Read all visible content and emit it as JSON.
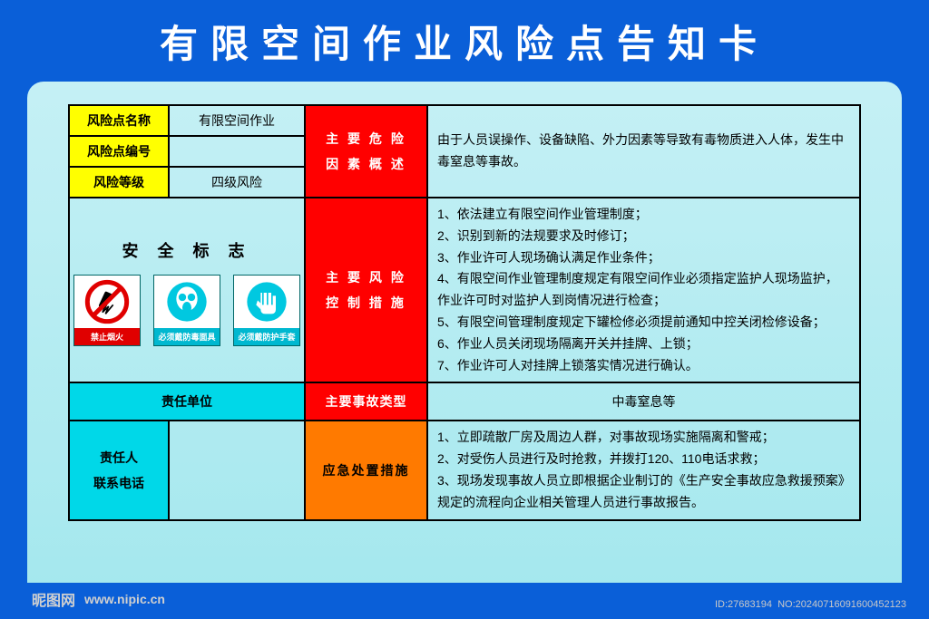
{
  "title": "有限空间作业风险点告知卡",
  "colors": {
    "frame": "#0a5fd8",
    "panel_top": "#c5f0f5",
    "panel_bottom": "#a5e8ee",
    "yellow": "#ffff00",
    "cyan": "#00d8e8",
    "red": "#ff0000",
    "orange": "#ff7a00",
    "border": "#000000"
  },
  "columns": {
    "c1": 110,
    "c2": 150,
    "c3": 135,
    "c4": "auto"
  },
  "rows": {
    "name": {
      "label": "风险点名称",
      "value": "有限空间作业"
    },
    "code": {
      "label": "风险点编号",
      "value": ""
    },
    "level": {
      "label": "风险等级",
      "value": "四级风险"
    },
    "hazard_summary": {
      "label": "主 要 危 险\n因 素 概 述",
      "text": "由于人员误操作、设备缺陷、外力因素等导致有毒物质进入人体，发生中毒窒息等事故。"
    },
    "safety_signs": {
      "title": "安 全 标 志",
      "signs": [
        {
          "type": "prohibit",
          "label": "禁止烟火",
          "icon_name": "no-fire-icon"
        },
        {
          "type": "mandate",
          "label": "必须戴防毒面具",
          "icon_name": "gas-mask-icon"
        },
        {
          "type": "mandate",
          "label": "必须戴防护手套",
          "icon_name": "gloves-icon"
        }
      ]
    },
    "control_measures": {
      "label": "主 要 风 险\n控 制 措 施",
      "items": [
        "1、依法建立有限空间作业管理制度；",
        "2、识别到新的法规要求及时修订；",
        "3、作业许可人现场确认满足作业条件；",
        "4、有限空间作业管理制度规定有限空间作业必须指定监护人现场监护，作业许可时对监护人到岗情况进行检查；",
        "5、有限空间管理制度规定下罐检修必须提前通知中控关闭检修设备；",
        "6、作业人员关闭现场隔离开关并挂牌、上锁；",
        "7、作业许可人对挂牌上锁落实情况进行确认。"
      ]
    },
    "responsible_org": {
      "label": "责任单位",
      "value": ""
    },
    "accident_type": {
      "label": "主要事故类型",
      "value": "中毒窒息等"
    },
    "contact": {
      "label1": "责任人",
      "label2": "联系电话",
      "value": ""
    },
    "emergency": {
      "label": "应急处置措施",
      "items": [
        "1、立即疏散厂房及周边人群，对事故现场实施隔离和警戒；",
        "2、对受伤人员进行及时抢救，并拨打120、110电话求救；",
        "3、现场发现事故人员立即根据企业制订的《生产安全事故应急救援预案》规定的流程向企业相关管理人员进行事故报告。"
      ]
    }
  },
  "watermark": {
    "brand": "昵图网",
    "url": "www.nipic.cn"
  },
  "meta": {
    "id": "ID:27683194",
    "ts": "NO:20240716091600452123"
  }
}
